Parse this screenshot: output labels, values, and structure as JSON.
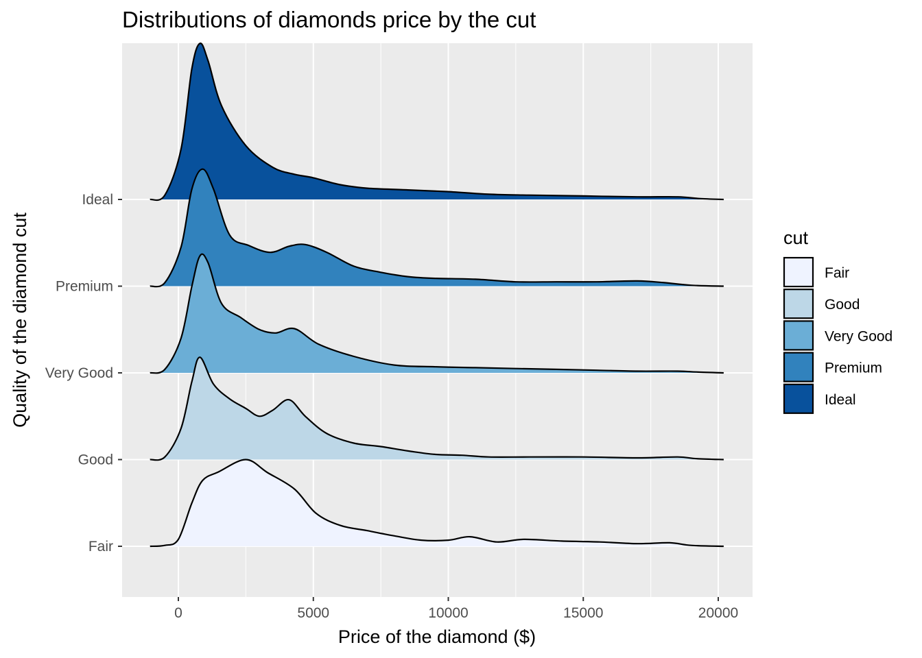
{
  "chart_data": {
    "type": "ridgeline",
    "title": "Distributions of diamonds price by the cut",
    "xlabel": "Price of the diamond ($)",
    "ylabel": "Quality of the diamond cut",
    "x_ticks": [
      0,
      5000,
      10000,
      15000,
      20000
    ],
    "x_tick_labels": [
      "0",
      "5000",
      "10000",
      "15000",
      "20000"
    ],
    "xlim": [
      -2100,
      21200
    ],
    "categories": [
      "Fair",
      "Good",
      "Very Good",
      "Premium",
      "Ideal"
    ],
    "grid": true,
    "background": "#EBEBEB",
    "legend": {
      "title": "cut",
      "position": "right",
      "items": [
        "Fair",
        "Good",
        "Very Good",
        "Premium",
        "Ideal"
      ]
    },
    "series": [
      {
        "name": "Fair",
        "color": "#EFF3FF",
        "y_index": 0,
        "points": [
          [
            -1050,
            0
          ],
          [
            -500,
            0.01
          ],
          [
            0,
            0.08
          ],
          [
            500,
            0.5
          ],
          [
            900,
            0.76
          ],
          [
            1500,
            0.86
          ],
          [
            2500,
            1.0
          ],
          [
            3300,
            0.85
          ],
          [
            4300,
            0.66
          ],
          [
            5100,
            0.38
          ],
          [
            6000,
            0.24
          ],
          [
            7000,
            0.18
          ],
          [
            8000,
            0.12
          ],
          [
            9000,
            0.07
          ],
          [
            10000,
            0.07
          ],
          [
            10800,
            0.11
          ],
          [
            11800,
            0.05
          ],
          [
            12800,
            0.08
          ],
          [
            14200,
            0.06
          ],
          [
            15600,
            0.05
          ],
          [
            17000,
            0.03
          ],
          [
            18200,
            0.04
          ],
          [
            19000,
            0.01
          ],
          [
            20200,
            0.0
          ]
        ]
      },
      {
        "name": "Good",
        "color": "#BDD7E7",
        "y_index": 1,
        "points": [
          [
            -1050,
            0
          ],
          [
            -500,
            0.03
          ],
          [
            100,
            0.36
          ],
          [
            500,
            0.9
          ],
          [
            800,
            1.18
          ],
          [
            1300,
            0.87
          ],
          [
            1900,
            0.7
          ],
          [
            2500,
            0.59
          ],
          [
            3000,
            0.5
          ],
          [
            3500,
            0.57
          ],
          [
            4100,
            0.69
          ],
          [
            4700,
            0.5
          ],
          [
            5500,
            0.3
          ],
          [
            6500,
            0.19
          ],
          [
            7500,
            0.15
          ],
          [
            8500,
            0.1
          ],
          [
            9500,
            0.06
          ],
          [
            10500,
            0.05
          ],
          [
            11500,
            0.03
          ],
          [
            13000,
            0.03
          ],
          [
            15000,
            0.03
          ],
          [
            17000,
            0.02
          ],
          [
            18500,
            0.03
          ],
          [
            19200,
            0.01
          ],
          [
            20200,
            0.0
          ]
        ]
      },
      {
        "name": "Very Good",
        "color": "#6BAED6",
        "y_index": 2,
        "points": [
          [
            -1050,
            0
          ],
          [
            -500,
            0.04
          ],
          [
            100,
            0.4
          ],
          [
            500,
            1.0
          ],
          [
            800,
            1.35
          ],
          [
            1100,
            1.27
          ],
          [
            1600,
            0.8
          ],
          [
            2300,
            0.64
          ],
          [
            3000,
            0.5
          ],
          [
            3600,
            0.46
          ],
          [
            4300,
            0.51
          ],
          [
            5200,
            0.33
          ],
          [
            6500,
            0.19
          ],
          [
            8000,
            0.09
          ],
          [
            9500,
            0.07
          ],
          [
            11000,
            0.06
          ],
          [
            12500,
            0.05
          ],
          [
            14000,
            0.04
          ],
          [
            15500,
            0.03
          ],
          [
            17000,
            0.02
          ],
          [
            18500,
            0.02
          ],
          [
            19200,
            0.01
          ],
          [
            20200,
            0.0
          ]
        ]
      },
      {
        "name": "Premium",
        "color": "#3182BD",
        "y_index": 3,
        "points": [
          [
            -1050,
            0
          ],
          [
            -500,
            0.04
          ],
          [
            100,
            0.45
          ],
          [
            500,
            1.12
          ],
          [
            900,
            1.35
          ],
          [
            1300,
            1.12
          ],
          [
            1900,
            0.59
          ],
          [
            2600,
            0.47
          ],
          [
            3400,
            0.39
          ],
          [
            4100,
            0.46
          ],
          [
            4700,
            0.48
          ],
          [
            5500,
            0.39
          ],
          [
            6500,
            0.23
          ],
          [
            7500,
            0.16
          ],
          [
            8500,
            0.11
          ],
          [
            9500,
            0.09
          ],
          [
            11000,
            0.08
          ],
          [
            12500,
            0.05
          ],
          [
            14000,
            0.05
          ],
          [
            15500,
            0.05
          ],
          [
            17000,
            0.06
          ],
          [
            18000,
            0.04
          ],
          [
            19000,
            0.01
          ],
          [
            20200,
            0.0
          ]
        ]
      },
      {
        "name": "Ideal",
        "color": "#08519C",
        "y_index": 4,
        "points": [
          [
            -1050,
            0
          ],
          [
            -500,
            0.05
          ],
          [
            100,
            0.58
          ],
          [
            500,
            1.51
          ],
          [
            800,
            1.8
          ],
          [
            1100,
            1.6
          ],
          [
            1600,
            1.08
          ],
          [
            2500,
            0.62
          ],
          [
            3500,
            0.37
          ],
          [
            4300,
            0.29
          ],
          [
            5000,
            0.25
          ],
          [
            6000,
            0.17
          ],
          [
            7000,
            0.13
          ],
          [
            8500,
            0.11
          ],
          [
            10000,
            0.09
          ],
          [
            11500,
            0.06
          ],
          [
            13000,
            0.05
          ],
          [
            15000,
            0.04
          ],
          [
            17000,
            0.03
          ],
          [
            18500,
            0.03
          ],
          [
            19300,
            0.01
          ],
          [
            20200,
            0.0
          ]
        ]
      }
    ]
  }
}
